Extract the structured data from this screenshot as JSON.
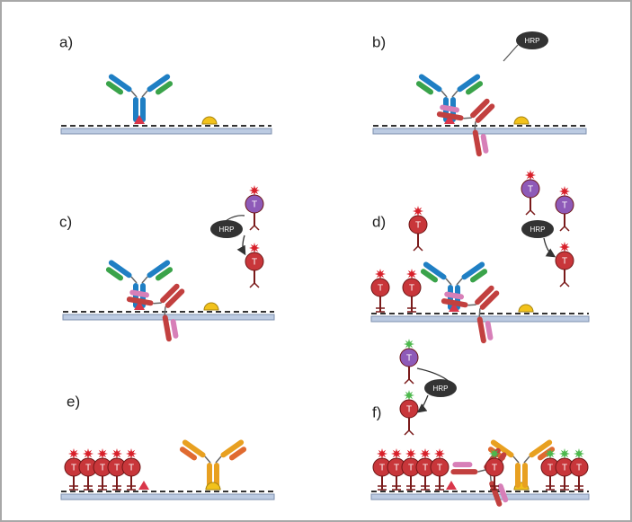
{
  "panels": [
    {
      "label": "a)"
    },
    {
      "label": "b)"
    },
    {
      "label": "c)"
    },
    {
      "label": "d)"
    },
    {
      "label": "e)"
    },
    {
      "label": "f)"
    }
  ],
  "hrp_label": "HRP",
  "tyramide_label": "T"
}
